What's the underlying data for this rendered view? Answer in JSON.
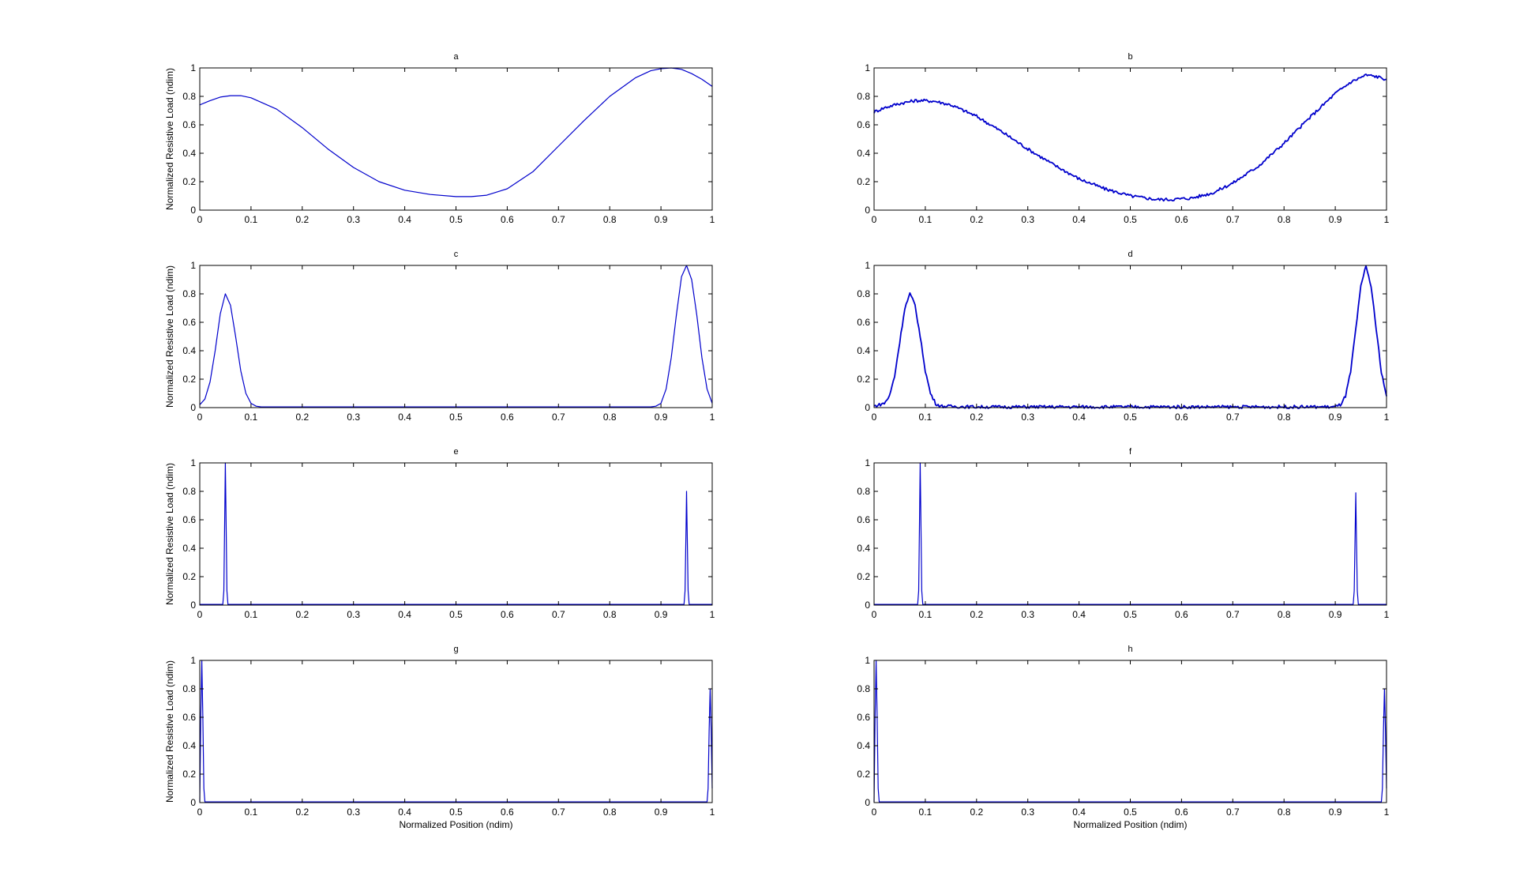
{
  "figure": {
    "line_color": "#0000cc",
    "background": "#ffffff",
    "axis_color": "#000000"
  },
  "chart_data": [
    {
      "id": "a",
      "type": "line",
      "title": "a",
      "xlabel": "",
      "ylabel": "Normalized Resistive Load (ndim)",
      "xlim": [
        0,
        1
      ],
      "ylim": [
        0,
        1
      ],
      "xticks": [
        "0",
        "0.1",
        "0.2",
        "0.3",
        "0.4",
        "0.5",
        "0.6",
        "0.7",
        "0.8",
        "0.9",
        "1"
      ],
      "yticks": [
        "0",
        "0.2",
        "0.4",
        "0.6",
        "0.8",
        "1"
      ],
      "grid": false,
      "noisy": false,
      "x": [
        0,
        0.02,
        0.04,
        0.06,
        0.08,
        0.1,
        0.15,
        0.2,
        0.25,
        0.3,
        0.35,
        0.4,
        0.45,
        0.5,
        0.53,
        0.56,
        0.6,
        0.65,
        0.7,
        0.75,
        0.8,
        0.85,
        0.88,
        0.9,
        0.92,
        0.94,
        0.96,
        0.98,
        1.0
      ],
      "y": [
        0.74,
        0.77,
        0.795,
        0.805,
        0.805,
        0.79,
        0.71,
        0.58,
        0.43,
        0.3,
        0.2,
        0.14,
        0.11,
        0.095,
        0.095,
        0.105,
        0.15,
        0.27,
        0.45,
        0.63,
        0.8,
        0.93,
        0.98,
        0.995,
        1.0,
        0.99,
        0.96,
        0.92,
        0.87
      ]
    },
    {
      "id": "b",
      "type": "line",
      "title": "b",
      "xlabel": "",
      "ylabel": "",
      "xlim": [
        0,
        1
      ],
      "ylim": [
        0,
        1
      ],
      "xticks": [
        "0",
        "0.1",
        "0.2",
        "0.3",
        "0.4",
        "0.5",
        "0.6",
        "0.7",
        "0.8",
        "0.9",
        "1"
      ],
      "yticks": [
        "0",
        "0.2",
        "0.4",
        "0.6",
        "0.8",
        "1"
      ],
      "grid": false,
      "noisy": true,
      "x": [
        0,
        0.02,
        0.05,
        0.08,
        0.1,
        0.12,
        0.15,
        0.2,
        0.25,
        0.3,
        0.35,
        0.4,
        0.45,
        0.5,
        0.55,
        0.58,
        0.62,
        0.66,
        0.7,
        0.75,
        0.8,
        0.85,
        0.9,
        0.93,
        0.96,
        0.98,
        1.0
      ],
      "y": [
        0.69,
        0.72,
        0.75,
        0.77,
        0.77,
        0.765,
        0.74,
        0.66,
        0.55,
        0.43,
        0.32,
        0.22,
        0.15,
        0.1,
        0.075,
        0.075,
        0.085,
        0.12,
        0.19,
        0.31,
        0.47,
        0.65,
        0.82,
        0.9,
        0.95,
        0.94,
        0.92
      ]
    },
    {
      "id": "c",
      "type": "line",
      "title": "c",
      "xlabel": "",
      "ylabel": "Normalized Resistive Load (ndim)",
      "xlim": [
        0,
        1
      ],
      "ylim": [
        0,
        1
      ],
      "xticks": [
        "0",
        "0.1",
        "0.2",
        "0.3",
        "0.4",
        "0.5",
        "0.6",
        "0.7",
        "0.8",
        "0.9",
        "1"
      ],
      "yticks": [
        "0",
        "0.2",
        "0.4",
        "0.6",
        "0.8",
        "1"
      ],
      "grid": false,
      "noisy": false,
      "x": [
        0,
        0.01,
        0.02,
        0.03,
        0.04,
        0.05,
        0.06,
        0.07,
        0.08,
        0.09,
        0.1,
        0.11,
        0.12,
        0.2,
        0.5,
        0.8,
        0.88,
        0.89,
        0.9,
        0.91,
        0.92,
        0.93,
        0.94,
        0.95,
        0.96,
        0.97,
        0.98,
        0.99,
        1.0
      ],
      "y": [
        0.02,
        0.06,
        0.18,
        0.4,
        0.66,
        0.8,
        0.72,
        0.5,
        0.26,
        0.1,
        0.03,
        0.01,
        0.005,
        0.005,
        0.005,
        0.005,
        0.005,
        0.01,
        0.03,
        0.13,
        0.35,
        0.65,
        0.92,
        1.0,
        0.9,
        0.65,
        0.35,
        0.13,
        0.03
      ]
    },
    {
      "id": "d",
      "type": "line",
      "title": "d",
      "xlabel": "",
      "ylabel": "",
      "xlim": [
        0,
        1
      ],
      "ylim": [
        0,
        1
      ],
      "xticks": [
        "0",
        "0.1",
        "0.2",
        "0.3",
        "0.4",
        "0.5",
        "0.6",
        "0.7",
        "0.8",
        "0.9",
        "1"
      ],
      "yticks": [
        "0",
        "0.2",
        "0.4",
        "0.6",
        "0.8",
        "1"
      ],
      "grid": false,
      "noisy": true,
      "x": [
        0,
        0.02,
        0.03,
        0.04,
        0.05,
        0.06,
        0.07,
        0.08,
        0.09,
        0.1,
        0.11,
        0.12,
        0.13,
        0.2,
        0.5,
        0.9,
        0.91,
        0.92,
        0.93,
        0.94,
        0.95,
        0.96,
        0.97,
        0.98,
        0.99,
        1.0
      ],
      "y": [
        0.01,
        0.03,
        0.08,
        0.22,
        0.46,
        0.7,
        0.8,
        0.72,
        0.5,
        0.26,
        0.1,
        0.03,
        0.01,
        0.005,
        0.005,
        0.005,
        0.02,
        0.08,
        0.25,
        0.55,
        0.85,
        1.0,
        0.85,
        0.55,
        0.25,
        0.08
      ]
    },
    {
      "id": "e",
      "type": "line",
      "title": "e",
      "xlabel": "",
      "ylabel": "Normalized Resistive Load (ndim)",
      "xlim": [
        0,
        1
      ],
      "ylim": [
        0,
        1
      ],
      "xticks": [
        "0",
        "0.1",
        "0.2",
        "0.3",
        "0.4",
        "0.5",
        "0.6",
        "0.7",
        "0.8",
        "0.9",
        "1"
      ],
      "yticks": [
        "0",
        "0.2",
        "0.4",
        "0.6",
        "0.8",
        "1"
      ],
      "grid": false,
      "noisy": false,
      "x": [
        0,
        0.045,
        0.047,
        0.049,
        0.05,
        0.051,
        0.053,
        0.055,
        0.5,
        0.945,
        0.947,
        0.949,
        0.95,
        0.951,
        0.953,
        0.955,
        1.0
      ],
      "y": [
        0.005,
        0.005,
        0.1,
        0.7,
        1.0,
        0.7,
        0.1,
        0.005,
        0.005,
        0.005,
        0.1,
        0.55,
        0.8,
        0.55,
        0.1,
        0.005,
        0.005
      ]
    },
    {
      "id": "f",
      "type": "line",
      "title": "f",
      "xlabel": "",
      "ylabel": "",
      "xlim": [
        0,
        1
      ],
      "ylim": [
        0,
        1
      ],
      "xticks": [
        "0",
        "0.1",
        "0.2",
        "0.3",
        "0.4",
        "0.5",
        "0.6",
        "0.7",
        "0.8",
        "0.9",
        "1"
      ],
      "yticks": [
        "0",
        "0.2",
        "0.4",
        "0.6",
        "0.8",
        "1"
      ],
      "grid": false,
      "noisy": false,
      "x": [
        0,
        0.085,
        0.087,
        0.089,
        0.09,
        0.091,
        0.093,
        0.095,
        0.5,
        0.935,
        0.937,
        0.939,
        0.94,
        0.941,
        0.943,
        0.945,
        1.0
      ],
      "y": [
        0.005,
        0.005,
        0.1,
        0.7,
        1.0,
        0.7,
        0.1,
        0.005,
        0.005,
        0.005,
        0.1,
        0.55,
        0.79,
        0.55,
        0.1,
        0.005,
        0.005
      ]
    },
    {
      "id": "g",
      "type": "line",
      "title": "g",
      "xlabel": "Normalized Position (ndim)",
      "ylabel": "Normalized Resistive Load (ndim)",
      "xlim": [
        0,
        1
      ],
      "ylim": [
        0,
        1
      ],
      "xticks": [
        "0",
        "0.1",
        "0.2",
        "0.3",
        "0.4",
        "0.5",
        "0.6",
        "0.7",
        "0.8",
        "0.9",
        "1"
      ],
      "yticks": [
        "0",
        "0.2",
        "0.4",
        "0.6",
        "0.8",
        "1"
      ],
      "grid": false,
      "noisy": false,
      "x": [
        0,
        0.002,
        0.004,
        0.006,
        0.008,
        0.01,
        0.5,
        0.99,
        0.992,
        0.994,
        0.996,
        0.998,
        1.0
      ],
      "y": [
        0.005,
        0.6,
        1.0,
        0.6,
        0.1,
        0.005,
        0.005,
        0.005,
        0.1,
        0.5,
        0.8,
        0.5,
        0.1
      ]
    },
    {
      "id": "h",
      "type": "line",
      "title": "h",
      "xlabel": "Normalized Position (ndim)",
      "ylabel": "",
      "xlim": [
        0,
        1
      ],
      "ylim": [
        0,
        1
      ],
      "xticks": [
        "0",
        "0.1",
        "0.2",
        "0.3",
        "0.4",
        "0.5",
        "0.6",
        "0.7",
        "0.8",
        "0.9",
        "1"
      ],
      "yticks": [
        "0",
        "0.2",
        "0.4",
        "0.6",
        "0.8",
        "1"
      ],
      "grid": false,
      "noisy": false,
      "x": [
        0,
        0.002,
        0.004,
        0.006,
        0.008,
        0.01,
        0.5,
        0.99,
        0.992,
        0.994,
        0.996,
        0.998,
        1.0
      ],
      "y": [
        0.005,
        0.6,
        1.0,
        0.6,
        0.1,
        0.005,
        0.005,
        0.005,
        0.1,
        0.5,
        0.8,
        0.5,
        0.1
      ]
    }
  ]
}
